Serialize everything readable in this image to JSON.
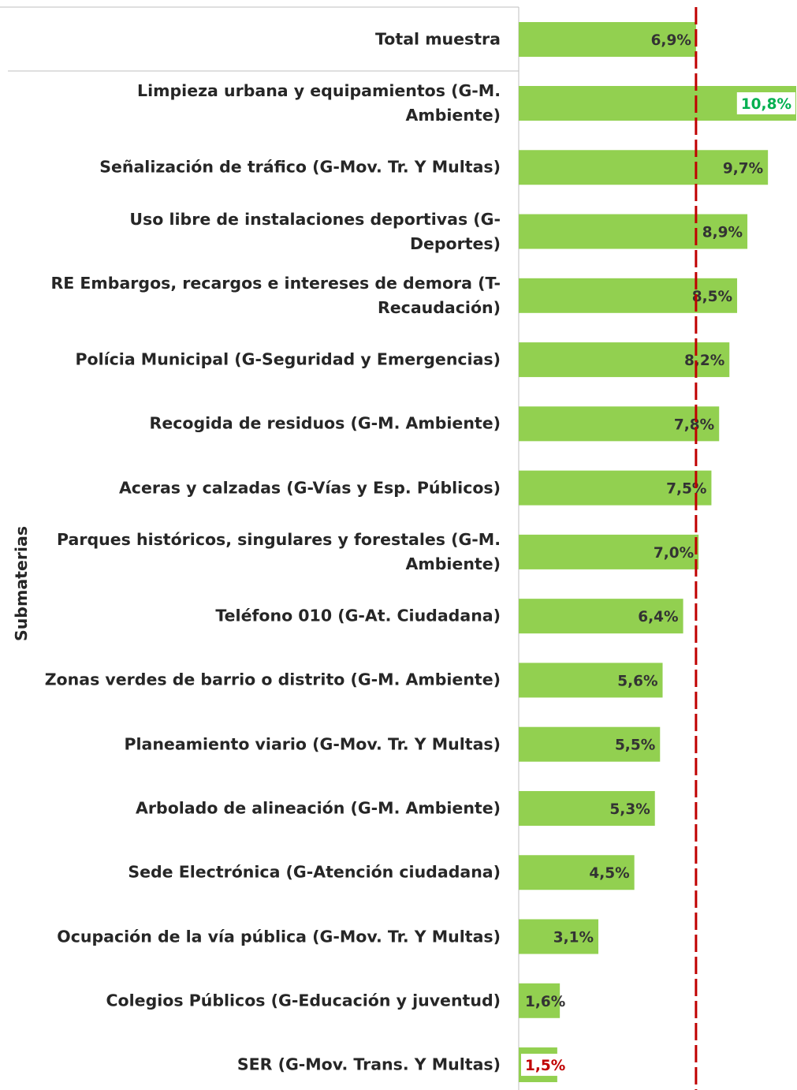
{
  "chart_data": {
    "type": "bar",
    "orientation": "horizontal",
    "y_axis_label": "Submaterias",
    "categories": [
      "Total muestra",
      "Limpieza urbana y equipamientos (G-M. Ambiente)",
      "Señalización de tráfico (G-Mov. Tr. Y Multas)",
      "Uso libre de instalaciones deportivas (G-Deportes)",
      "RE Embargos, recargos e intereses de demora (T-Recaudación)",
      "Polícia Municipal (G-Seguridad y Emergencias)",
      "Recogida de residuos (G-M. Ambiente)",
      "Aceras y calzadas (G-Vías y Esp. Públicos)",
      "Parques históricos, singulares y forestales (G-M. Ambiente)",
      "Teléfono 010 (G-At. Ciudadana)",
      "Zonas verdes de barrio o distrito (G-M. Ambiente)",
      "Planeamiento viario (G-Mov. Tr. Y Multas)",
      "Arbolado de alineación (G-M. Ambiente)",
      "Sede Electrónica (G-Atención ciudadana)",
      "Ocupación de la vía pública (G-Mov. Tr. Y Multas)",
      "Colegios Públicos (G-Educación y juventud)",
      "SER (G-Mov. Trans. Y Multas)"
    ],
    "values": [
      6.9,
      10.8,
      9.7,
      8.9,
      8.5,
      8.2,
      7.8,
      7.5,
      7.0,
      6.4,
      5.6,
      5.5,
      5.3,
      4.5,
      3.1,
      1.6,
      1.5
    ],
    "value_labels": [
      "6,9%",
      "10,8%",
      "9,7%",
      "8,9%",
      "8,5%",
      "8,2%",
      "7,8%",
      "7,5%",
      "7,0%",
      "6,4%",
      "5,6%",
      "5,5%",
      "5,3%",
      "4,5%",
      "3,1%",
      "1,6%",
      "1,5%"
    ],
    "color": "#92d050",
    "reference_color": "#c00000",
    "max_label_color": "#00b050",
    "min_label_color": "#c00000",
    "xlim": [
      0,
      10.8
    ]
  }
}
